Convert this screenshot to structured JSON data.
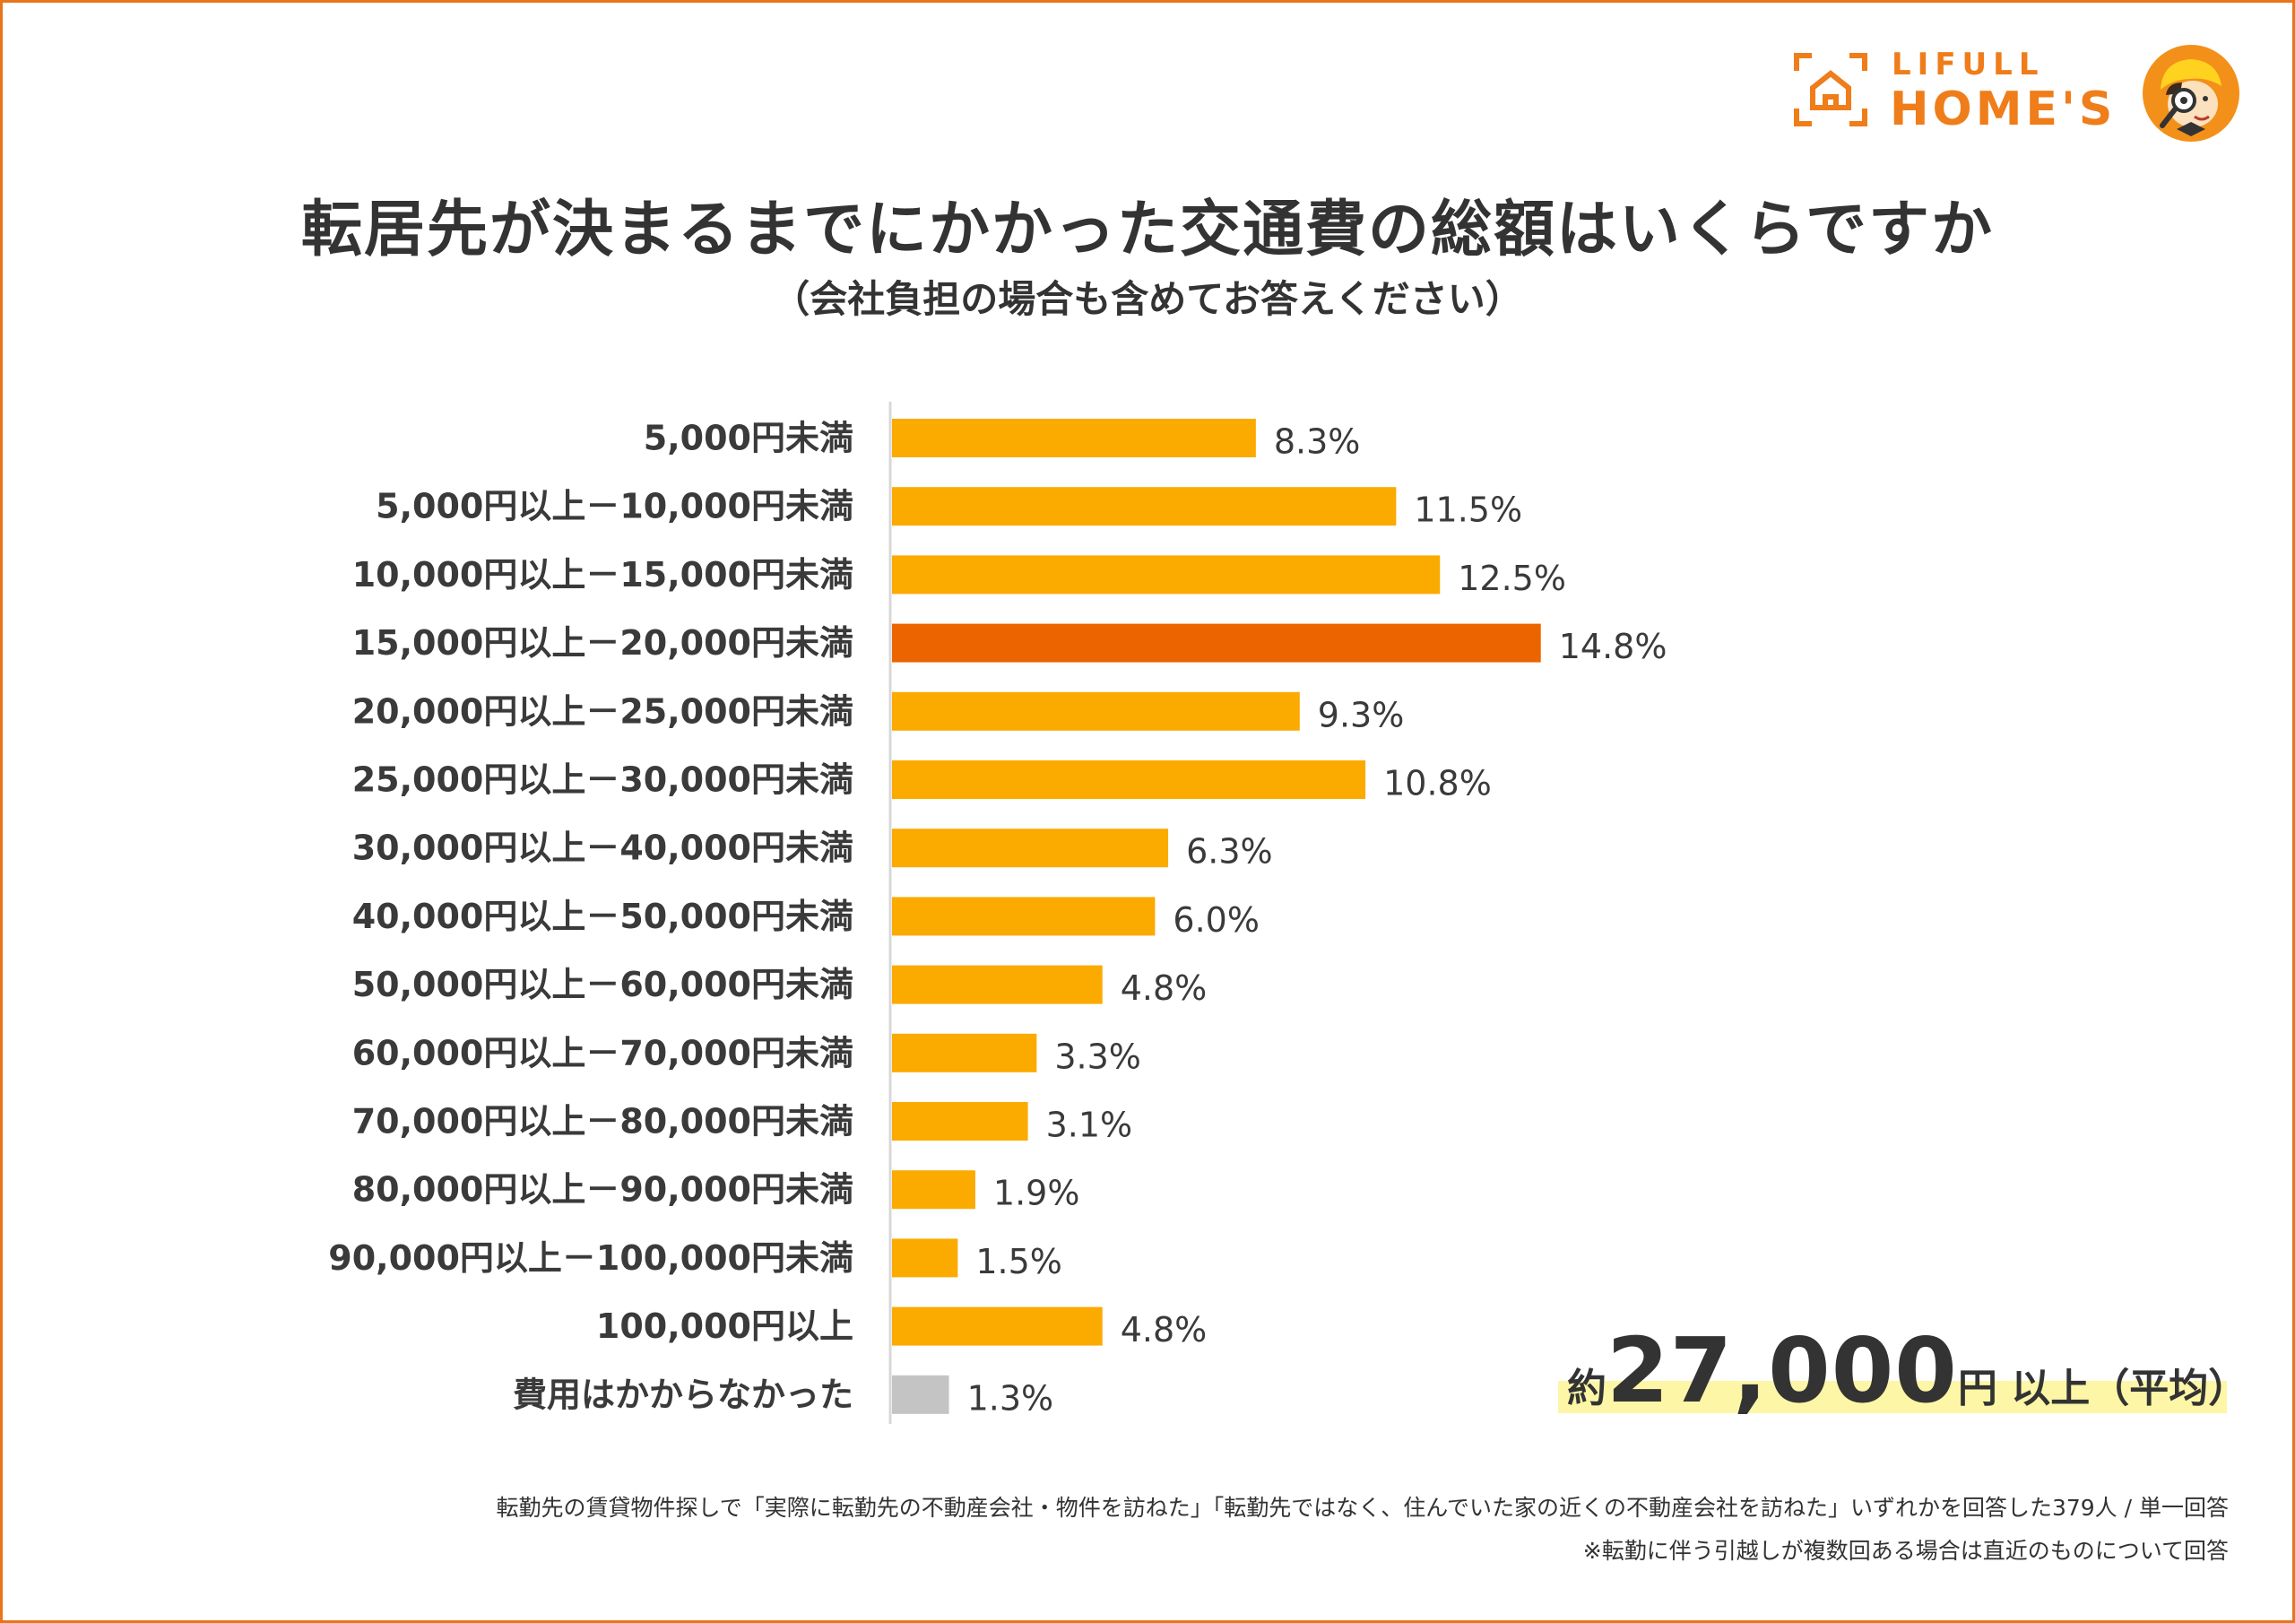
{
  "logo": {
    "brand_top": "LIFULL",
    "brand_main": "HOME'S",
    "icon": "house-frame-icon",
    "mascot": "mascot-character-icon",
    "color": "#ef7d1a"
  },
  "title": "転居先が決まるまでにかかった交通費の総額はいくらですか",
  "subtitle": "（会社負担の場合も含めてお答えください）",
  "chart_data": {
    "type": "bar",
    "orientation": "horizontal",
    "unit": "%",
    "categories": [
      "5,000円未満",
      "5,000円以上－10,000円未満",
      "10,000円以上－15,000円未満",
      "15,000円以上－20,000円未満",
      "20,000円以上－25,000円未満",
      "25,000円以上－30,000円未満",
      "30,000円以上－40,000円未満",
      "40,000円以上－50,000円未満",
      "50,000円以上－60,000円未満",
      "60,000円以上－70,000円未満",
      "70,000円以上－80,000円未満",
      "80,000円以上－90,000円未満",
      "90,000円以上－100,000円未満",
      "100,000円以上",
      "費用はかからなかった"
    ],
    "values": [
      8.3,
      11.5,
      12.5,
      14.8,
      9.3,
      10.8,
      6.3,
      6.0,
      4.8,
      3.3,
      3.1,
      1.9,
      1.5,
      4.8,
      1.3
    ],
    "value_labels": [
      "8.3%",
      "11.5%",
      "12.5%",
      "14.8%",
      "9.3%",
      "10.8%",
      "6.3%",
      "6.0%",
      "4.8%",
      "3.3%",
      "3.1%",
      "1.9%",
      "1.5%",
      "4.8%",
      "1.3%"
    ],
    "bar_colors": [
      "#fbaa00",
      "#fbaa00",
      "#fbaa00",
      "#ec6400",
      "#fbaa00",
      "#fbaa00",
      "#fbaa00",
      "#fbaa00",
      "#fbaa00",
      "#fbaa00",
      "#fbaa00",
      "#fbaa00",
      "#fbaa00",
      "#fbaa00",
      "#c4c4c4"
    ],
    "highlight_color": "#ec6400",
    "default_color": "#fbaa00",
    "none_color": "#c4c4c4",
    "xlim": [
      0,
      15
    ],
    "grid": false,
    "legend": "none"
  },
  "average": {
    "prefix": "約",
    "number": "27,000",
    "suffix": "円 以上（平均）",
    "highlight_color": "#fdf6a6"
  },
  "footnotes": [
    "転勤先の賃貸物件探しで「実際に転勤先の不動産会社・物件を訪ねた」「転勤先ではなく、住んでいた家の近くの不動産会社を訪ねた」いずれかを回答した379人 / 単一回答",
    "※転勤に伴う引越しが複数回ある場合は直近のものについて回答"
  ]
}
